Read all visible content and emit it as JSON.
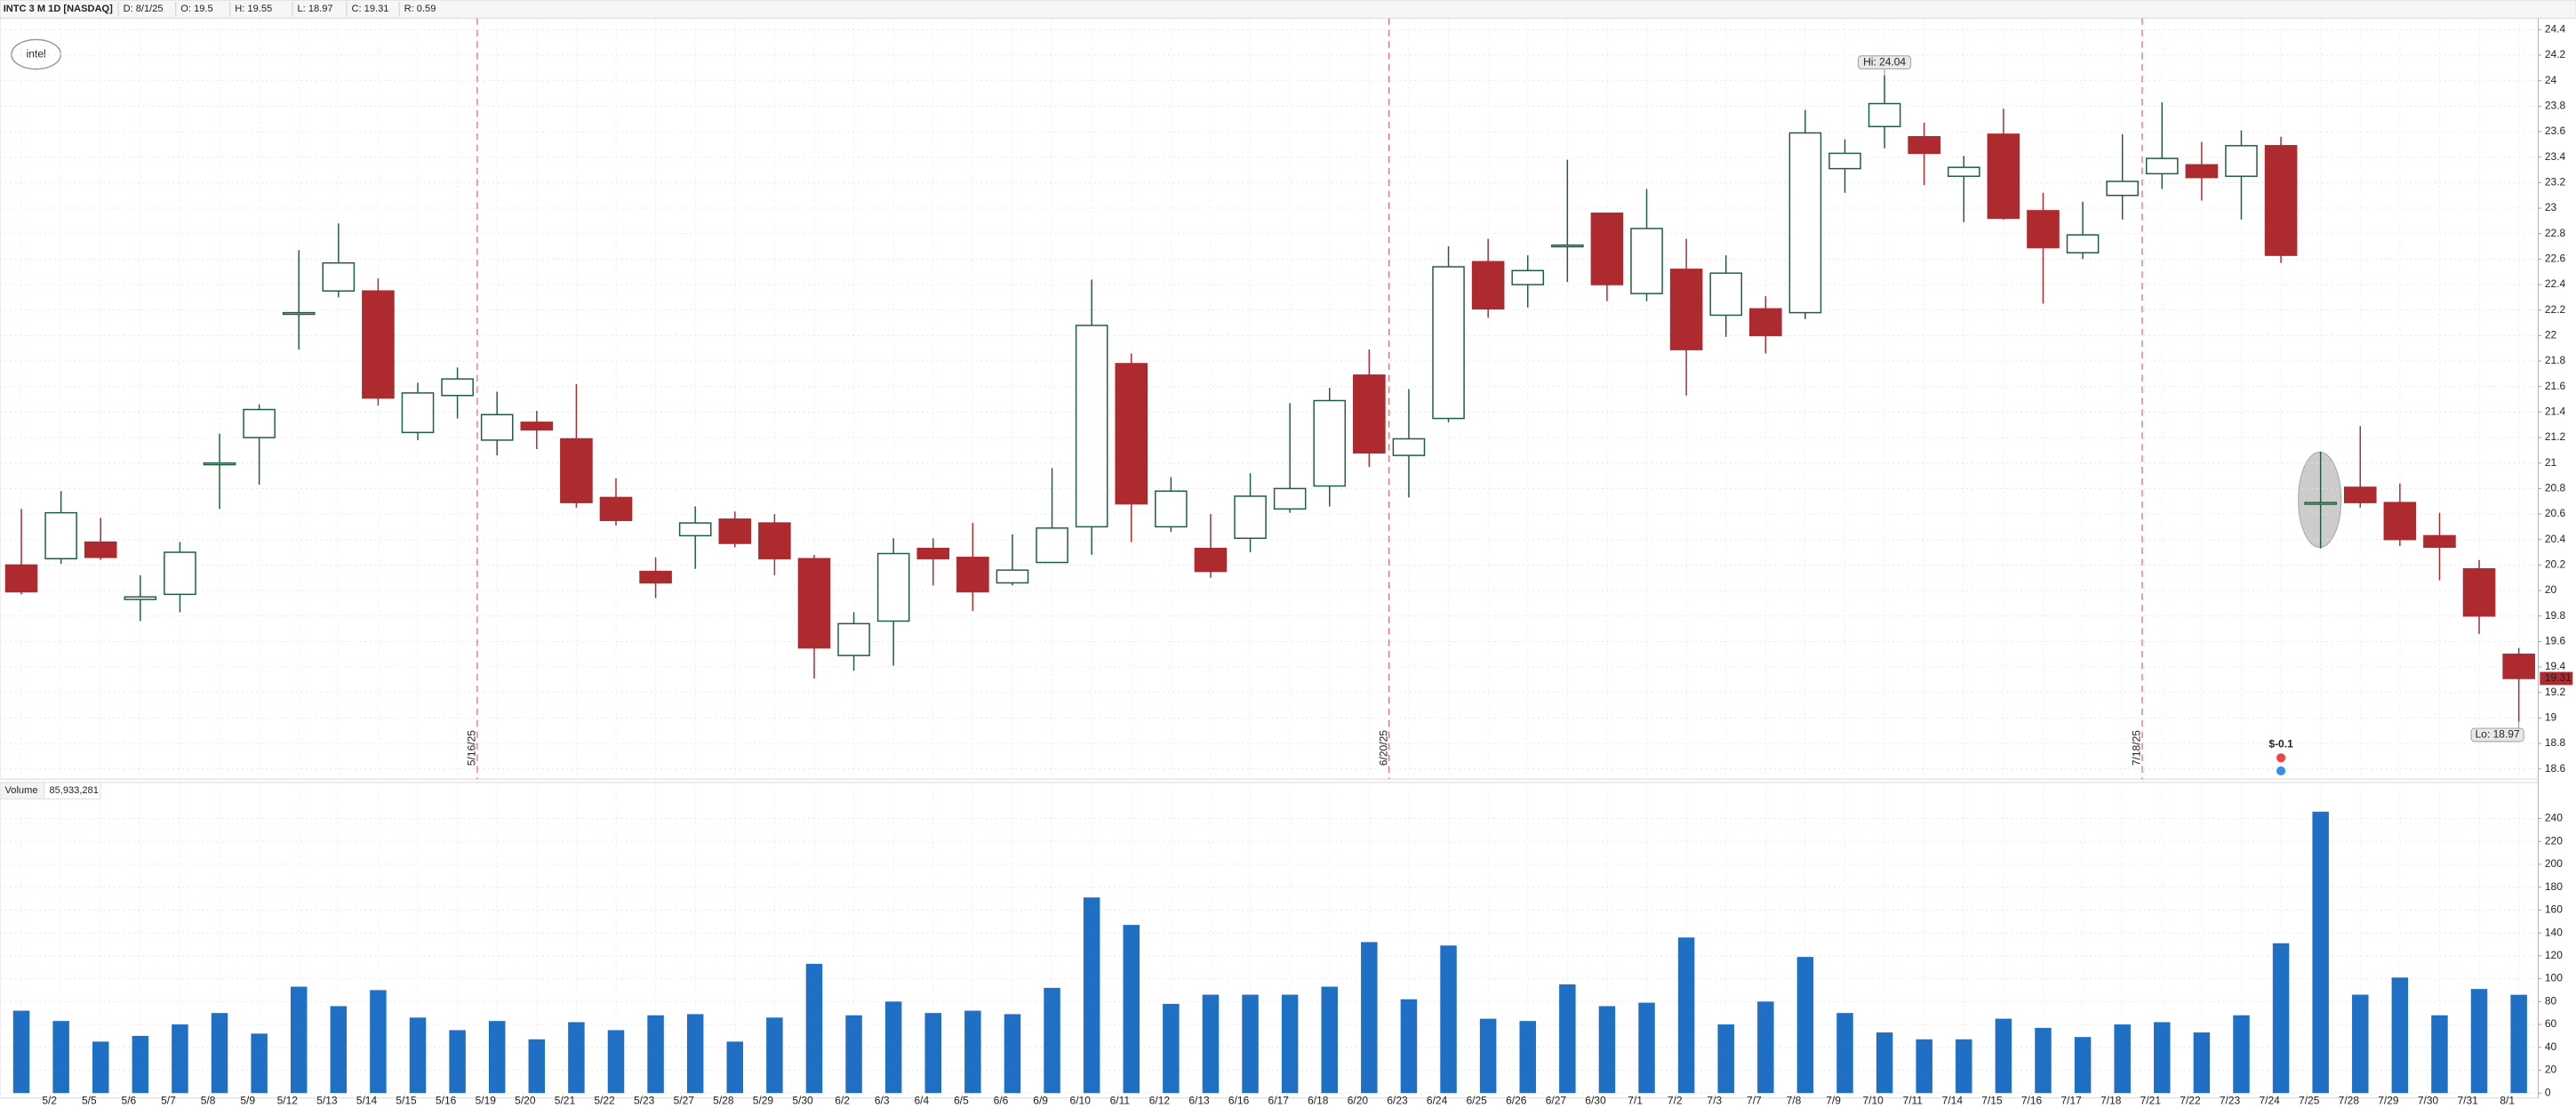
{
  "header": {
    "symbol": "INTC 3 M 1D [NASDAQ]",
    "date": "D: 8/1/25",
    "open": "O: 19.5",
    "high": "H: 19.55",
    "low": "L: 18.97",
    "close": "C: 19.31",
    "range": "R: 0.59",
    "logo": "intel"
  },
  "chart_data": [
    {
      "type": "candlestick",
      "categories": [
        null,
        "5/2",
        "5/5",
        "5/6",
        "5/7",
        "5/8",
        "5/9",
        "5/12",
        "5/13",
        "5/14",
        "5/15",
        "5/16",
        "5/19",
        "5/20",
        "5/21",
        "5/22",
        "5/23",
        "5/27",
        "5/28",
        "5/29",
        "5/30",
        "6/2",
        "6/3",
        "6/4",
        "6/5",
        "6/6",
        "6/9",
        "6/10",
        "6/11",
        "6/12",
        "6/13",
        "6/16",
        "6/17",
        "6/18",
        "6/20",
        "6/23",
        "6/24",
        "6/25",
        "6/26",
        "6/27",
        "6/30",
        "7/1",
        "7/2",
        "7/3",
        "7/7",
        "7/8",
        "7/9",
        "7/10",
        "7/11",
        "7/14",
        "7/15",
        "7/16",
        "7/17",
        "7/18",
        "7/21",
        "7/22",
        "7/23",
        "7/24",
        "7/25",
        "7/28",
        "7/29",
        "7/30",
        "7/31",
        "8/1"
      ],
      "open": [
        20.2,
        20.25,
        20.38,
        19.93,
        19.97,
        20.99,
        21.2,
        22.17,
        22.35,
        22.35,
        21.24,
        21.53,
        21.18,
        21.32,
        21.19,
        20.73,
        20.15,
        20.43,
        20.56,
        20.53,
        20.25,
        19.49,
        19.76,
        20.33,
        20.26,
        20.06,
        20.22,
        20.5,
        21.78,
        20.5,
        20.33,
        20.41,
        20.64,
        20.82,
        21.69,
        21.06,
        21.35,
        22.58,
        22.4,
        22.7,
        22.96,
        22.33,
        22.52,
        22.16,
        22.21,
        22.18,
        23.31,
        23.64,
        23.56,
        23.25,
        23.58,
        22.98,
        22.65,
        23.1,
        23.27,
        23.34,
        23.25,
        23.49,
        20.68,
        20.81,
        20.69,
        20.43,
        20.17,
        19.5
      ],
      "high": [
        20.64,
        20.78,
        20.57,
        20.12,
        20.38,
        21.23,
        21.46,
        22.67,
        22.88,
        22.45,
        21.63,
        21.75,
        21.56,
        21.41,
        21.62,
        20.88,
        20.26,
        20.66,
        20.62,
        20.6,
        20.28,
        19.83,
        20.41,
        20.41,
        20.53,
        20.44,
        20.96,
        22.44,
        21.86,
        20.89,
        20.6,
        20.92,
        21.47,
        21.59,
        21.89,
        21.58,
        22.7,
        22.76,
        22.63,
        23.38,
        22.96,
        23.15,
        22.76,
        22.63,
        22.31,
        23.77,
        23.54,
        24.04,
        23.67,
        23.41,
        23.78,
        23.12,
        23.05,
        23.58,
        23.83,
        23.52,
        23.61,
        23.56,
        21.09,
        21.29,
        20.84,
        20.61,
        20.24,
        19.55
      ],
      "low": [
        19.97,
        20.21,
        20.24,
        19.76,
        19.83,
        20.64,
        20.83,
        21.89,
        22.3,
        21.45,
        21.18,
        21.35,
        21.06,
        21.11,
        20.65,
        20.51,
        19.94,
        20.17,
        20.34,
        20.12,
        19.31,
        19.37,
        19.41,
        20.04,
        19.84,
        20.04,
        20.22,
        20.28,
        20.38,
        20.46,
        20.1,
        20.3,
        20.61,
        20.66,
        20.97,
        20.73,
        21.32,
        22.14,
        22.22,
        22.42,
        22.27,
        22.27,
        21.53,
        21.99,
        21.86,
        22.13,
        23.12,
        23.47,
        23.18,
        22.89,
        22.91,
        22.25,
        22.6,
        22.91,
        23.15,
        23.06,
        22.91,
        22.57,
        20.33,
        20.65,
        20.35,
        20.08,
        19.66,
        18.97
      ],
      "close": [
        19.99,
        20.61,
        20.26,
        19.95,
        20.3,
        21,
        21.42,
        22.18,
        22.57,
        21.51,
        21.55,
        21.66,
        21.38,
        21.26,
        20.69,
        20.55,
        20.06,
        20.53,
        20.37,
        20.25,
        19.55,
        19.74,
        20.29,
        20.25,
        19.99,
        20.16,
        20.49,
        22.08,
        20.68,
        20.78,
        20.15,
        20.74,
        20.8,
        21.49,
        21.08,
        21.19,
        22.54,
        22.21,
        22.51,
        22.71,
        22.4,
        22.84,
        21.89,
        22.49,
        22,
        23.59,
        23.43,
        23.82,
        23.43,
        23.32,
        22.92,
        22.69,
        22.79,
        23.21,
        23.39,
        23.24,
        23.49,
        22.63,
        20.69,
        20.69,
        20.4,
        20.34,
        19.8,
        19.31
      ],
      "up_color": "#1d5e3b",
      "down_color": "#ad2a2e",
      "ylim": [
        18.52,
        24.49
      ],
      "yticks": [
        18.6,
        18.8,
        19,
        19.2,
        19.4,
        19.6,
        19.8,
        20,
        20.2,
        20.4,
        20.6,
        20.8,
        21,
        21.2,
        21.4,
        21.6,
        21.8,
        22,
        22.2,
        22.4,
        22.6,
        22.8,
        23,
        23.2,
        23.4,
        23.6,
        23.8,
        24,
        24.2,
        24.4
      ],
      "grid": true,
      "expirations": [
        "5/16/25",
        "6/20/25",
        "7/18/25"
      ],
      "high_label": "Hi: 24.04",
      "low_label": "Lo: 18.97",
      "earnings": {
        "date": "7/24",
        "label": "$-0.1"
      }
    },
    {
      "type": "bar",
      "title": "Volume",
      "last_value_label": "85,933,281",
      "color": "#1f6fc4",
      "values": [
        72,
        63,
        45,
        50,
        60,
        70,
        52,
        93,
        76,
        90,
        66,
        55,
        63,
        47,
        62,
        55,
        68,
        69,
        45,
        66,
        113,
        68,
        80,
        70,
        72,
        69,
        92,
        171,
        147,
        78,
        86,
        86,
        86,
        93,
        132,
        82,
        129,
        65,
        63,
        95,
        76,
        79,
        136,
        60,
        80,
        119,
        70,
        53,
        47,
        47,
        65,
        57,
        49,
        60,
        62,
        53,
        68,
        131,
        246,
        86,
        101,
        68,
        91,
        85.93
      ],
      "ylim": [
        0,
        250
      ],
      "yticks": [
        0,
        20,
        40,
        60,
        80,
        100,
        120,
        140,
        160,
        180,
        200,
        220,
        240
      ],
      "grid": true
    }
  ]
}
